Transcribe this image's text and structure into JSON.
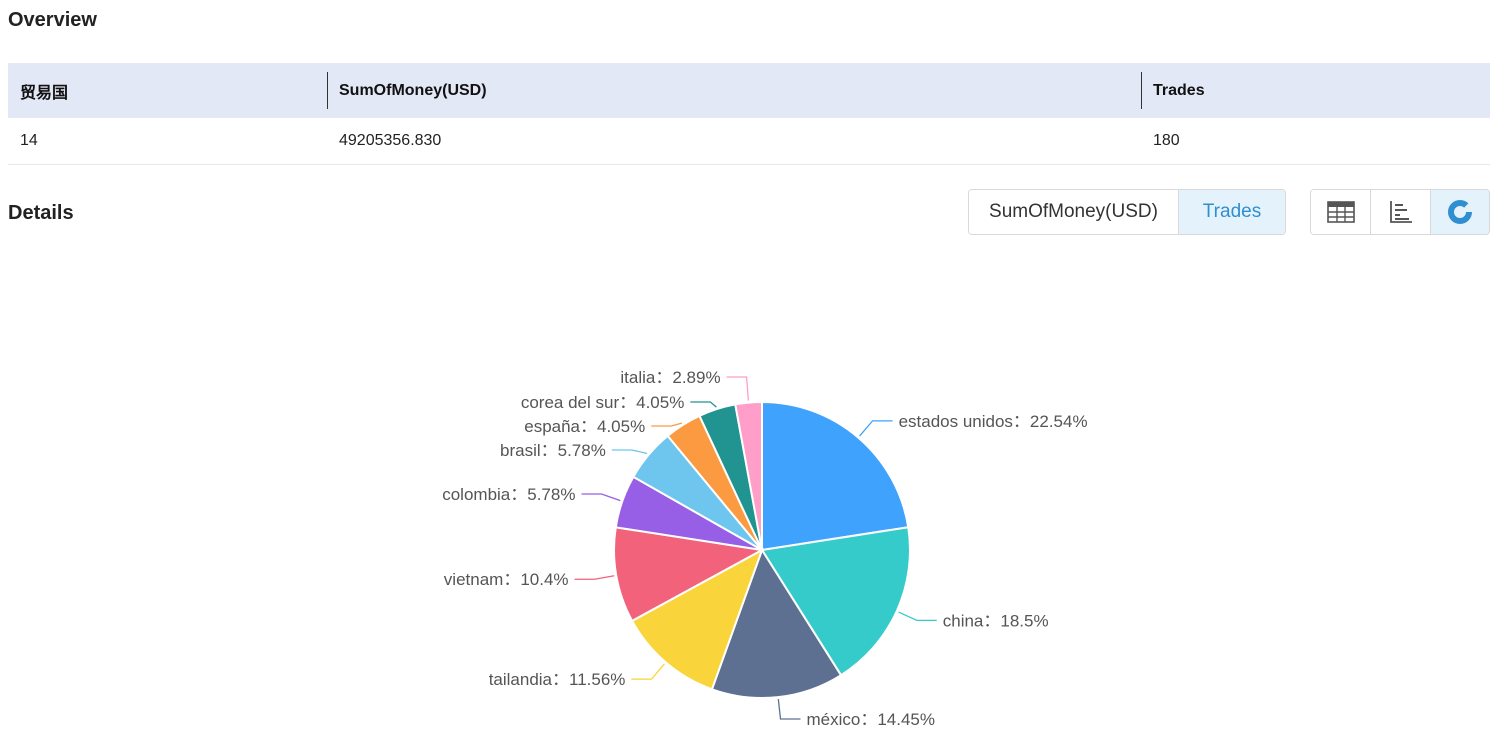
{
  "overview": {
    "title": "Overview",
    "headers": [
      "贸易国",
      "SumOfMoney(USD)",
      "Trades"
    ],
    "row": [
      "14",
      "49205356.830",
      "180"
    ]
  },
  "details": {
    "title": "Details",
    "metric_toggle": [
      "SumOfMoney(USD)",
      "Trades"
    ],
    "active_metric": "Trades",
    "view_icons": [
      "table-icon",
      "bar-chart-icon",
      "pie-chart-icon"
    ],
    "active_view": "pie-chart-icon"
  },
  "colors": {
    "header_bg": "#e3e8f6",
    "active_toggle_bg": "#e4f2fb",
    "active_toggle_text": "#2f8fd0"
  },
  "chart_data": {
    "type": "pie",
    "categories": [
      "estados unidos",
      "china",
      "méxico",
      "tailandia",
      "vietnam",
      "colombia",
      "brasil",
      "españa",
      "corea del sur",
      "italia"
    ],
    "values": [
      22.54,
      18.5,
      14.45,
      11.56,
      10.4,
      5.78,
      5.78,
      4.05,
      4.05,
      2.89
    ],
    "labels": [
      "estados unidos：22.54%",
      "china：18.5%",
      "méxico：14.45%",
      "tailandia：11.56%",
      "vietnam：10.4%",
      "colombia：5.78%",
      "brasil：5.78%",
      "españa：4.05%",
      "corea del sur：4.05%",
      "italia：2.89%"
    ],
    "colors": [
      "#3fa2fd",
      "#36cbcb",
      "#5e7091",
      "#f9d43a",
      "#f2637b",
      "#975fe5",
      "#6ec6ee",
      "#fb9a40",
      "#219390",
      "#fe9ec9"
    ],
    "unit": "%"
  }
}
